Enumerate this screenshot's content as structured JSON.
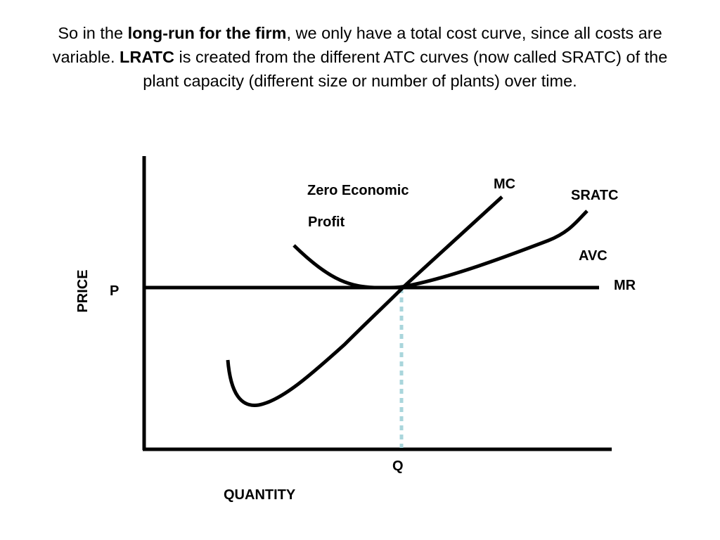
{
  "title": {
    "t1": "So in the ",
    "t2": "long-run for the firm",
    "t3": ", we only have a total cost curve, since all costs are variable.  ",
    "t4": "LRATC",
    "t5": " is created from the different ATC curves (now called SRATC) of the plant capacity (different size or number of plants) over time."
  },
  "labels": {
    "zero_line1": "Zero  Economic",
    "zero_line2": "Profit",
    "mc": "MC",
    "sratc": "SRATC",
    "avc": "AVC",
    "mr": "MR",
    "p": "P",
    "q": "Q",
    "price": "PRICE",
    "quantity": "QUANTITY"
  },
  "colors": {
    "curves": "#000000",
    "q_guide": "#a9d6dc"
  }
}
